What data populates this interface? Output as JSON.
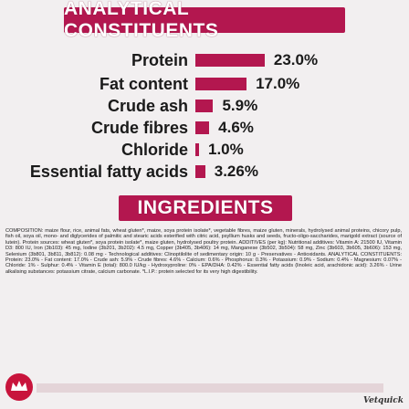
{
  "analytical": {
    "title": "ANALYTICAL CONSTITUENTS",
    "items": [
      {
        "label": "Protein",
        "value": "23.0%",
        "percent": 23.0
      },
      {
        "label": "Fat content",
        "value": "17.0%",
        "percent": 17.0
      },
      {
        "label": "Crude ash",
        "value": "5.9%",
        "percent": 5.9
      },
      {
        "label": "Crude fibres",
        "value": "4.6%",
        "percent": 4.6
      },
      {
        "label": "Chloride",
        "value": "1.0%",
        "percent": 1.0
      },
      {
        "label": "Essential fatty acids",
        "value": "3.26%",
        "percent": 3.26
      }
    ]
  },
  "ingredients": {
    "title": "INGREDIENTS",
    "text": "COMPOSITION: maize flour, rice, animal fats, wheat gluten*, maize, soya protein isolate*, vegetable fibres, maize gluten, minerals, hydrolysed animal proteins, chicory pulp, fish oil, soya oil, mono- and diglycerides of palmitic and stearic acids esterified with citric acid, psyllium husks and seeds, fructo-oligo-saccharides, marigold extract (source of lutein). Protein sources: wheat gluten*, soya protein isolate*, maize gluten, hydrolysed poultry protein. ADDITIVES (per kg): Nutritional additives: Vitamin A: 21500 IU, Vitamin D3: 800 IU, Iron (3b103): 45 mg, Iodine (3b201, 3b202): 4.5 mg, Copper (3b405, 3b406): 14 mg, Manganese (3b502, 3b504): 58 mg, Zinc (3b603, 3b605, 3b606): 153 mg, Selenium (3b801, 3b811, 3b812): 0.08 mg - Technological additives: Clinoptilolite of sedimentary origin: 10 g - Preservatives - Antioxidants. ANALYTICAL CONSTITUENTS: Protein: 23.0% - Fat content: 17.0% - Crude ash: 5.9% - Crude fibres: 4.6% - Calcium: 0.6% - Phosphorus: 0.3% - Potassium: 0.9% - Sodium: 0.4% - Magnesium: 0.07% - Chloride: 1% - Sulphur: 0.4% - Vitamin E (total): 800.0 IU/kg - Hydroxyproline: 0% - EPA/DHA: 0.42% - Essential fatty acids (linoleic acid, arachidonic acid): 3.26% - Urine alkalising substances: potassium citrate, calcium carbonate. *L.I.P.: protein selected for its very high digestibility."
  },
  "footer": {
    "watermark": "Vetquick"
  },
  "colors": {
    "accent": "#b3174f",
    "logo": "#c8143c"
  },
  "icons": [
    "royal-canin-crown-logo"
  ]
}
